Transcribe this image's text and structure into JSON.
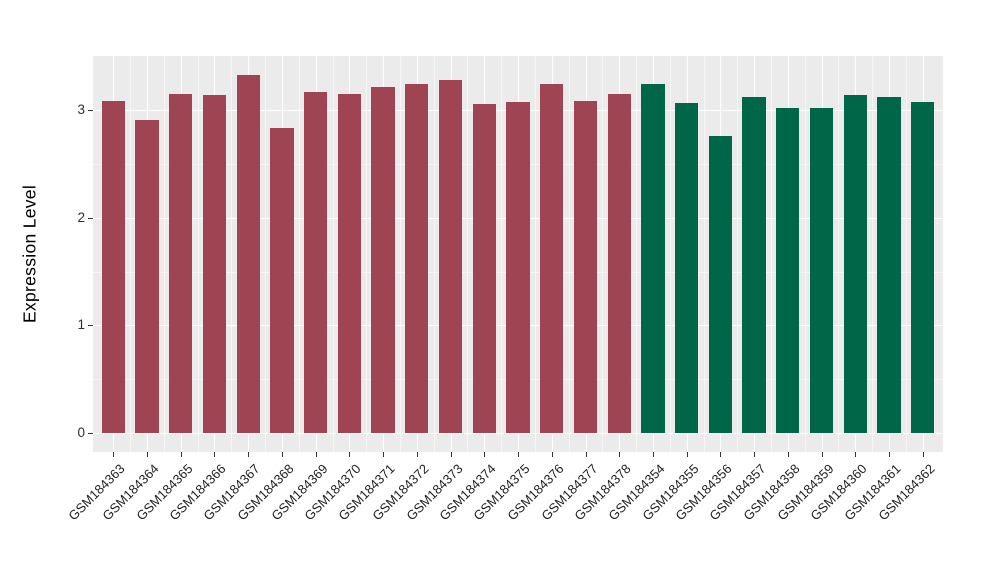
{
  "figure": {
    "background_color": "#FFFFFF",
    "panel_background_color": "#EBEBEB",
    "gridline_color": "#FFFFFF",
    "axis_text_color": "#2e2e2e",
    "tick_mark_color": "#333333"
  },
  "chart_data": {
    "type": "bar",
    "title": "",
    "xlabel": "",
    "ylabel": "Expression Level",
    "legend": "none",
    "grid": true,
    "y_major_ticks": [
      0,
      1,
      2,
      3
    ],
    "y_minor_ticks": [
      0.5,
      1.5,
      2.5
    ],
    "ylim_display": [
      -0.18,
      3.5
    ],
    "categories": [
      "GSM184363",
      "GSM184364",
      "GSM184365",
      "GSM184366",
      "GSM184367",
      "GSM184368",
      "GSM184369",
      "GSM184370",
      "GSM184371",
      "GSM184372",
      "GSM184373",
      "GSM184374",
      "GSM184375",
      "GSM184376",
      "GSM184377",
      "GSM184378",
      "GSM184354",
      "GSM184355",
      "GSM184356",
      "GSM184357",
      "GSM184358",
      "GSM184359",
      "GSM184360",
      "GSM184361",
      "GSM184362"
    ],
    "values": [
      3.09,
      2.91,
      3.15,
      3.14,
      3.33,
      2.83,
      3.17,
      3.15,
      3.22,
      3.24,
      3.28,
      3.06,
      3.08,
      3.24,
      3.09,
      3.15,
      3.24,
      3.07,
      2.76,
      3.12,
      3.02,
      3.02,
      3.14,
      3.12,
      3.08
    ],
    "series": [
      {
        "color_group": "dark-red",
        "color": "#9E4452",
        "categories": [
          "GSM184363",
          "GSM184364",
          "GSM184365",
          "GSM184366",
          "GSM184367",
          "GSM184368",
          "GSM184369",
          "GSM184370",
          "GSM184371",
          "GSM184372",
          "GSM184373",
          "GSM184374",
          "GSM184375",
          "GSM184376",
          "GSM184377",
          "GSM184378"
        ],
        "values": [
          3.09,
          2.91,
          3.15,
          3.14,
          3.33,
          2.83,
          3.17,
          3.15,
          3.22,
          3.24,
          3.28,
          3.06,
          3.08,
          3.24,
          3.09,
          3.15
        ]
      },
      {
        "color_group": "dark-green",
        "color": "#006648",
        "categories": [
          "GSM184354",
          "GSM184355",
          "GSM184356",
          "GSM184357",
          "GSM184358",
          "GSM184359",
          "GSM184360",
          "GSM184361",
          "GSM184362"
        ],
        "values": [
          3.24,
          3.07,
          2.76,
          3.12,
          3.02,
          3.02,
          3.14,
          3.12,
          3.08
        ]
      }
    ]
  }
}
